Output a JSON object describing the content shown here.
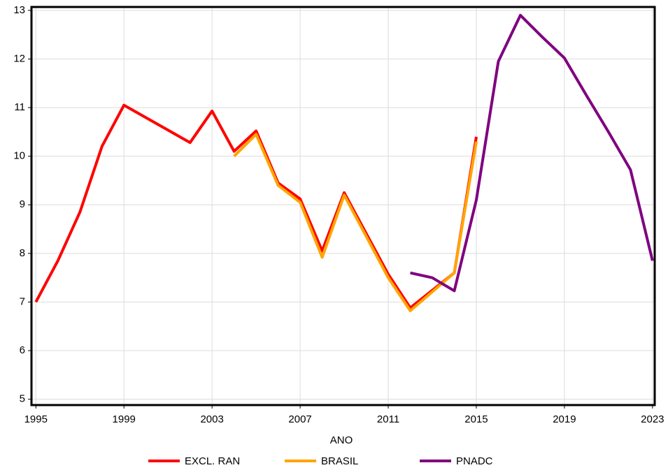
{
  "chart_data": {
    "type": "line",
    "x_label": "ANO",
    "xlim": [
      1994.8,
      2023.1
    ],
    "xticks": [
      1995,
      1999,
      2003,
      2007,
      2011,
      2015,
      2019,
      2023
    ],
    "ylim": [
      4.88,
      13.07
    ],
    "yticks": [
      5,
      6,
      7,
      8,
      9,
      10,
      11,
      12,
      13
    ],
    "grid": true,
    "legend": "bottom",
    "series": [
      {
        "name": "EXCL. RAN",
        "color": "#ff0000",
        "x": [
          1995,
          1996,
          1997,
          1998,
          1999,
          2002,
          2003,
          2004,
          2005,
          2006,
          2007,
          2008,
          2009,
          2011,
          2012,
          2014,
          2015
        ],
        "values": [
          7.0,
          7.85,
          8.85,
          10.2,
          11.05,
          10.28,
          10.93,
          10.1,
          10.52,
          9.45,
          9.12,
          8.05,
          9.25,
          7.57,
          6.88,
          7.6,
          10.4
        ]
      },
      {
        "name": "BRASIL",
        "color": "#ffa500",
        "x": [
          2004,
          2005,
          2006,
          2007,
          2008,
          2009,
          2011,
          2012,
          2014,
          2015
        ],
        "values": [
          10.0,
          10.45,
          9.4,
          9.05,
          7.92,
          9.2,
          7.5,
          6.82,
          7.6,
          10.3
        ]
      },
      {
        "name": "PNADC",
        "color": "#800080",
        "x": [
          2012,
          2013,
          2014,
          2015,
          2016,
          2017,
          2018,
          2019,
          2020,
          2021,
          2022,
          2023
        ],
        "values": [
          7.6,
          7.5,
          7.23,
          9.1,
          11.95,
          12.9,
          12.45,
          12.02,
          11.25,
          10.5,
          9.72,
          7.85
        ]
      }
    ]
  }
}
